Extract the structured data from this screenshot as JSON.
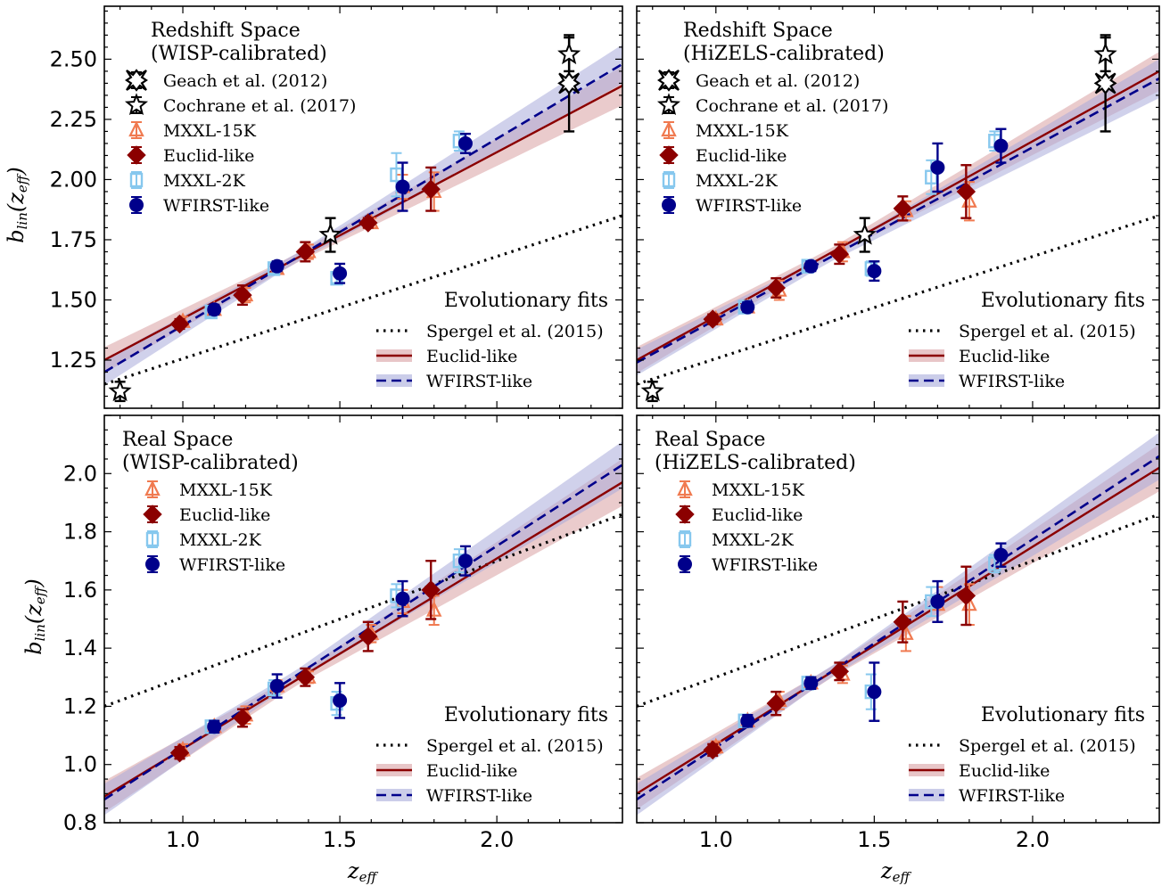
{
  "chart_data": [
    {
      "type": "scatter",
      "title": "Redshift Space",
      "subtitle": "(WISP-calibrated)",
      "xlim": [
        0.75,
        2.4
      ],
      "ylim": [
        1.05,
        2.72
      ],
      "yticks": [
        "1.25",
        "1.50",
        "1.75",
        "2.00",
        "2.25",
        "2.50"
      ],
      "xticks": [
        "1.0",
        "1.5",
        "2.0"
      ],
      "xlabel": "z_eff",
      "ylabel": "b_lin(z_eff)",
      "legend_entries": [
        "Geach et al. (2012)",
        "Cochrane et al. (2017)",
        "MXXL-15K",
        "Euclid-like",
        "MXXL-2K",
        "WFIRST-like"
      ],
      "fits_title": "Evolutionary fits",
      "fits_entries": [
        "Spergel et al. (2015)",
        "Euclid-like",
        "WFIRST-like"
      ],
      "fits": {
        "spergel": {
          "x": [
            0.75,
            2.4
          ],
          "y": [
            1.15,
            1.85
          ]
        },
        "euclid": {
          "x": [
            0.75,
            2.4
          ],
          "y": [
            1.25,
            2.39
          ]
        },
        "wfirst": {
          "x": [
            0.75,
            2.4
          ],
          "y": [
            1.2,
            2.48
          ]
        }
      },
      "series": [
        {
          "name": "Geach et al. (2012)",
          "points": [
            {
              "x": 2.23,
              "y": 2.4,
              "err": 0.2
            }
          ]
        },
        {
          "name": "Cochrane et al. (2017)",
          "points": [
            {
              "x": 0.8,
              "y": 1.12,
              "err": 0.04
            },
            {
              "x": 1.47,
              "y": 1.77,
              "err": 0.07
            },
            {
              "x": 2.23,
              "y": 2.52,
              "err": 0.07
            }
          ]
        },
        {
          "name": "MXXL-15K",
          "points": [
            {
              "x": 1.0,
              "y": 1.41,
              "err": 0.02
            },
            {
              "x": 1.1,
              "y": 1.46,
              "err": 0.02
            },
            {
              "x": 1.2,
              "y": 1.52,
              "err": 0.03
            },
            {
              "x": 1.3,
              "y": 1.63,
              "err": 0.02
            },
            {
              "x": 1.4,
              "y": 1.7,
              "err": 0.03
            },
            {
              "x": 1.6,
              "y": 1.82,
              "err": 0.02
            },
            {
              "x": 1.7,
              "y": 1.97,
              "err": 0.05
            },
            {
              "x": 1.8,
              "y": 1.95,
              "err": 0.08
            }
          ]
        },
        {
          "name": "Euclid-like",
          "points": [
            {
              "x": 0.99,
              "y": 1.4,
              "err": 0.02
            },
            {
              "x": 1.19,
              "y": 1.52,
              "err": 0.04
            },
            {
              "x": 1.39,
              "y": 1.7,
              "err": 0.04
            },
            {
              "x": 1.59,
              "y": 1.82,
              "err": 0.02
            },
            {
              "x": 1.79,
              "y": 1.96,
              "err": 0.09
            }
          ]
        },
        {
          "name": "MXXL-2K",
          "points": [
            {
              "x": 1.09,
              "y": 1.45,
              "err": 0.02
            },
            {
              "x": 1.29,
              "y": 1.63,
              "err": 0.02
            },
            {
              "x": 1.49,
              "y": 1.59,
              "err": 0.02
            },
            {
              "x": 1.68,
              "y": 2.02,
              "err": 0.09
            },
            {
              "x": 1.88,
              "y": 2.16,
              "err": 0.04
            }
          ]
        },
        {
          "name": "WFIRST-like",
          "points": [
            {
              "x": 1.1,
              "y": 1.46,
              "err": 0.02
            },
            {
              "x": 1.3,
              "y": 1.64,
              "err": 0.02
            },
            {
              "x": 1.5,
              "y": 1.61,
              "err": 0.04
            },
            {
              "x": 1.7,
              "y": 1.97,
              "err": 0.1
            },
            {
              "x": 1.9,
              "y": 2.15,
              "err": 0.04
            }
          ]
        }
      ]
    },
    {
      "type": "scatter",
      "title": "Redshift Space",
      "subtitle": "(HiZELS-calibrated)",
      "xlim": [
        0.75,
        2.4
      ],
      "ylim": [
        1.05,
        2.72
      ],
      "yticks": [
        "1.25",
        "1.50",
        "1.75",
        "2.00",
        "2.25",
        "2.50"
      ],
      "xticks": [
        "1.0",
        "1.5",
        "2.0"
      ],
      "xlabel": "z_eff",
      "ylabel": "b_lin(z_eff)",
      "legend_entries": [
        "Geach et al. (2012)",
        "Cochrane et al. (2017)",
        "MXXL-15K",
        "Euclid-like",
        "MXXL-2K",
        "WFIRST-like"
      ],
      "fits_title": "Evolutionary fits",
      "fits_entries": [
        "Spergel et al. (2015)",
        "Euclid-like",
        "WFIRST-like"
      ],
      "fits": {
        "spergel": {
          "x": [
            0.75,
            2.4
          ],
          "y": [
            1.15,
            1.85
          ]
        },
        "euclid": {
          "x": [
            0.75,
            2.4
          ],
          "y": [
            1.25,
            2.45
          ]
        },
        "wfirst": {
          "x": [
            0.75,
            2.4
          ],
          "y": [
            1.24,
            2.42
          ]
        }
      },
      "series": [
        {
          "name": "Geach et al. (2012)",
          "points": [
            {
              "x": 2.23,
              "y": 2.4,
              "err": 0.2
            }
          ]
        },
        {
          "name": "Cochrane et al. (2017)",
          "points": [
            {
              "x": 0.8,
              "y": 1.12,
              "err": 0.04
            },
            {
              "x": 1.47,
              "y": 1.77,
              "err": 0.07
            },
            {
              "x": 2.23,
              "y": 2.52,
              "err": 0.07
            }
          ]
        },
        {
          "name": "MXXL-15K",
          "points": [
            {
              "x": 1.0,
              "y": 1.42,
              "err": 0.02
            },
            {
              "x": 1.1,
              "y": 1.47,
              "err": 0.02
            },
            {
              "x": 1.2,
              "y": 1.54,
              "err": 0.04
            },
            {
              "x": 1.4,
              "y": 1.7,
              "err": 0.04
            },
            {
              "x": 1.6,
              "y": 1.87,
              "err": 0.04
            },
            {
              "x": 1.8,
              "y": 1.91,
              "err": 0.08
            }
          ]
        },
        {
          "name": "Euclid-like",
          "points": [
            {
              "x": 0.99,
              "y": 1.42,
              "err": 0.02
            },
            {
              "x": 1.19,
              "y": 1.55,
              "err": 0.04
            },
            {
              "x": 1.39,
              "y": 1.69,
              "err": 0.04
            },
            {
              "x": 1.59,
              "y": 1.88,
              "err": 0.05
            },
            {
              "x": 1.79,
              "y": 1.95,
              "err": 0.11
            }
          ]
        },
        {
          "name": "MXXL-2K",
          "points": [
            {
              "x": 1.09,
              "y": 1.47,
              "err": 0.02
            },
            {
              "x": 1.29,
              "y": 1.64,
              "err": 0.02
            },
            {
              "x": 1.49,
              "y": 1.63,
              "err": 0.03
            },
            {
              "x": 1.68,
              "y": 2.01,
              "err": 0.07
            },
            {
              "x": 1.88,
              "y": 2.16,
              "err": 0.04
            }
          ]
        },
        {
          "name": "WFIRST-like",
          "points": [
            {
              "x": 1.1,
              "y": 1.47,
              "err": 0.02
            },
            {
              "x": 1.3,
              "y": 1.64,
              "err": 0.02
            },
            {
              "x": 1.5,
              "y": 1.62,
              "err": 0.04
            },
            {
              "x": 1.7,
              "y": 2.05,
              "err": 0.1
            },
            {
              "x": 1.9,
              "y": 2.14,
              "err": 0.07
            }
          ]
        }
      ]
    },
    {
      "type": "scatter",
      "title": "Real Space",
      "subtitle": "(WISP-calibrated)",
      "xlim": [
        0.75,
        2.4
      ],
      "ylim": [
        0.8,
        2.2
      ],
      "yticks": [
        "0.8",
        "1.0",
        "1.2",
        "1.4",
        "1.6",
        "1.8",
        "2.0"
      ],
      "xticks": [
        "1.0",
        "1.5",
        "2.0"
      ],
      "xlabel": "z_eff",
      "ylabel": "b_lin(z_eff)",
      "legend_entries": [
        "MXXL-15K",
        "Euclid-like",
        "MXXL-2K",
        "WFIRST-like"
      ],
      "fits_title": "Evolutionary fits",
      "fits_entries": [
        "Spergel et al. (2015)",
        "Euclid-like",
        "WFIRST-like"
      ],
      "fits": {
        "spergel": {
          "x": [
            0.75,
            2.4
          ],
          "y": [
            1.2,
            1.86
          ]
        },
        "euclid": {
          "x": [
            0.75,
            2.4
          ],
          "y": [
            0.89,
            1.97
          ]
        },
        "wfirst": {
          "x": [
            0.75,
            2.4
          ],
          "y": [
            0.88,
            2.03
          ]
        }
      },
      "series": [
        {
          "name": "MXXL-15K",
          "points": [
            {
              "x": 1.0,
              "y": 1.05,
              "err": 0.02
            },
            {
              "x": 1.1,
              "y": 1.13,
              "err": 0.02
            },
            {
              "x": 1.2,
              "y": 1.17,
              "err": 0.03
            },
            {
              "x": 1.3,
              "y": 1.27,
              "err": 0.02
            },
            {
              "x": 1.4,
              "y": 1.3,
              "err": 0.02
            },
            {
              "x": 1.6,
              "y": 1.45,
              "err": 0.03
            },
            {
              "x": 1.7,
              "y": 1.56,
              "err": 0.04
            },
            {
              "x": 1.8,
              "y": 1.53,
              "err": 0.05
            }
          ]
        },
        {
          "name": "Euclid-like",
          "points": [
            {
              "x": 0.99,
              "y": 1.04,
              "err": 0.02
            },
            {
              "x": 1.19,
              "y": 1.16,
              "err": 0.03
            },
            {
              "x": 1.39,
              "y": 1.3,
              "err": 0.03
            },
            {
              "x": 1.59,
              "y": 1.44,
              "err": 0.05
            },
            {
              "x": 1.79,
              "y": 1.6,
              "err": 0.1
            }
          ]
        },
        {
          "name": "MXXL-2K",
          "points": [
            {
              "x": 1.09,
              "y": 1.13,
              "err": 0.02
            },
            {
              "x": 1.29,
              "y": 1.26,
              "err": 0.03
            },
            {
              "x": 1.49,
              "y": 1.21,
              "err": 0.04
            },
            {
              "x": 1.68,
              "y": 1.58,
              "err": 0.04
            },
            {
              "x": 1.88,
              "y": 1.7,
              "err": 0.04
            }
          ]
        },
        {
          "name": "WFIRST-like",
          "points": [
            {
              "x": 1.1,
              "y": 1.13,
              "err": 0.02
            },
            {
              "x": 1.3,
              "y": 1.27,
              "err": 0.04
            },
            {
              "x": 1.5,
              "y": 1.22,
              "err": 0.06
            },
            {
              "x": 1.7,
              "y": 1.57,
              "err": 0.06
            },
            {
              "x": 1.9,
              "y": 1.7,
              "err": 0.05
            }
          ]
        }
      ]
    },
    {
      "type": "scatter",
      "title": "Real Space",
      "subtitle": "(HiZELS-calibrated)",
      "xlim": [
        0.75,
        2.4
      ],
      "ylim": [
        0.8,
        2.2
      ],
      "yticks": [
        "0.8",
        "1.0",
        "1.2",
        "1.4",
        "1.6",
        "1.8",
        "2.0"
      ],
      "xticks": [
        "1.0",
        "1.5",
        "2.0"
      ],
      "xlabel": "z_eff",
      "ylabel": "b_lin(z_eff)",
      "legend_entries": [
        "MXXL-15K",
        "Euclid-like",
        "MXXL-2K",
        "WFIRST-like"
      ],
      "fits_title": "Evolutionary fits",
      "fits_entries": [
        "Spergel et al. (2015)",
        "Euclid-like",
        "WFIRST-like"
      ],
      "fits": {
        "spergel": {
          "x": [
            0.75,
            2.4
          ],
          "y": [
            1.2,
            1.86
          ]
        },
        "euclid": {
          "x": [
            0.75,
            2.4
          ],
          "y": [
            0.9,
            2.02
          ]
        },
        "wfirst": {
          "x": [
            0.75,
            2.4
          ],
          "y": [
            0.88,
            2.06
          ]
        }
      },
      "series": [
        {
          "name": "MXXL-15K",
          "points": [
            {
              "x": 1.0,
              "y": 1.06,
              "err": 0.02
            },
            {
              "x": 1.1,
              "y": 1.15,
              "err": 0.02
            },
            {
              "x": 1.2,
              "y": 1.22,
              "err": 0.03
            },
            {
              "x": 1.3,
              "y": 1.28,
              "err": 0.02
            },
            {
              "x": 1.4,
              "y": 1.31,
              "err": 0.03
            },
            {
              "x": 1.6,
              "y": 1.45,
              "err": 0.06
            },
            {
              "x": 1.7,
              "y": 1.55,
              "err": 0.06
            },
            {
              "x": 1.8,
              "y": 1.55,
              "err": 0.07
            }
          ]
        },
        {
          "name": "Euclid-like",
          "points": [
            {
              "x": 0.99,
              "y": 1.05,
              "err": 0.02
            },
            {
              "x": 1.19,
              "y": 1.21,
              "err": 0.04
            },
            {
              "x": 1.39,
              "y": 1.32,
              "err": 0.03
            },
            {
              "x": 1.59,
              "y": 1.49,
              "err": 0.07
            },
            {
              "x": 1.79,
              "y": 1.58,
              "err": 0.1
            }
          ]
        },
        {
          "name": "MXXL-2K",
          "points": [
            {
              "x": 1.09,
              "y": 1.15,
              "err": 0.02
            },
            {
              "x": 1.29,
              "y": 1.28,
              "err": 0.02
            },
            {
              "x": 1.49,
              "y": 1.25,
              "err": 0.06
            },
            {
              "x": 1.68,
              "y": 1.56,
              "err": 0.05
            },
            {
              "x": 1.88,
              "y": 1.69,
              "err": 0.03
            }
          ]
        },
        {
          "name": "WFIRST-like",
          "points": [
            {
              "x": 1.1,
              "y": 1.15,
              "err": 0.02
            },
            {
              "x": 1.3,
              "y": 1.28,
              "err": 0.02
            },
            {
              "x": 1.5,
              "y": 1.25,
              "err": 0.1
            },
            {
              "x": 1.7,
              "y": 1.56,
              "err": 0.07
            },
            {
              "x": 1.9,
              "y": 1.72,
              "err": 0.04
            }
          ]
        }
      ]
    }
  ],
  "colors": {
    "mxxl15k": "#f07a50",
    "euclid": "#8b0000",
    "mxxl2k": "#87c8ee",
    "wfirst": "#00008b",
    "observational": "#000000",
    "euclid_band": "#d9a0a3",
    "wfirst_band": "#a9acda"
  }
}
